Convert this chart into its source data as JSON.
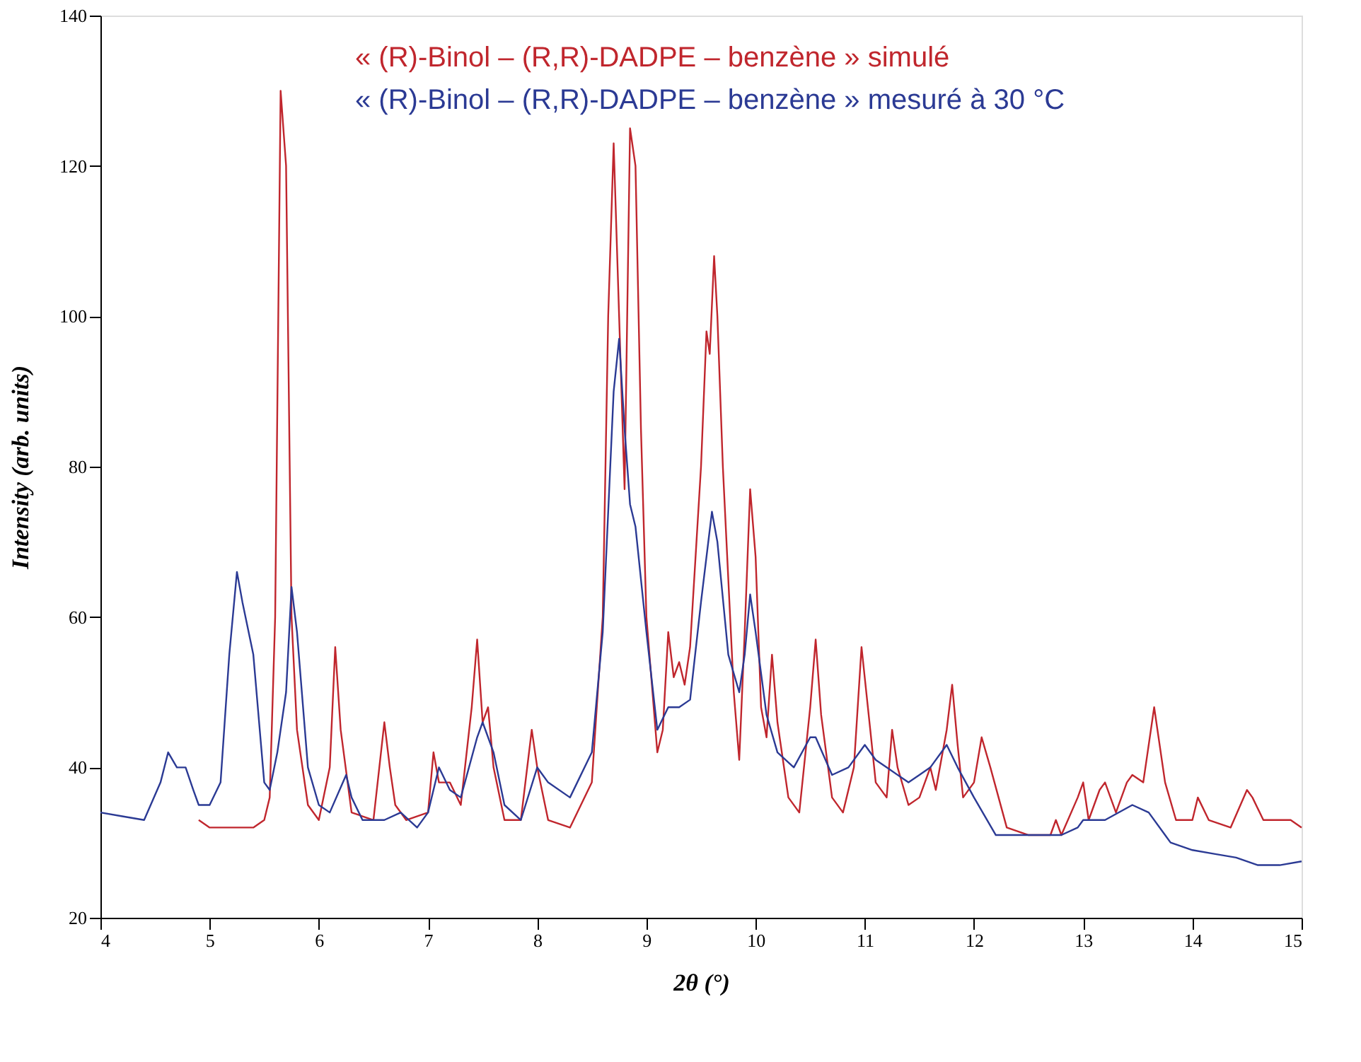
{
  "chart_data": {
    "type": "line",
    "xlabel": "2θ (°)",
    "ylabel": "Intensity (arb. units)",
    "xlim": [
      4,
      15
    ],
    "ylim": [
      20,
      140
    ],
    "xticks": [
      4,
      5,
      6,
      7,
      8,
      9,
      10,
      11,
      12,
      13,
      14,
      15
    ],
    "yticks": [
      20,
      40,
      60,
      80,
      100,
      120,
      140
    ],
    "grid": false,
    "legend": "top right",
    "marker": "none",
    "line_style": "solid",
    "series": [
      {
        "name": "« (R)-Binol – (R,R)-DADPE – benzène » simulé",
        "color": "#c0262d",
        "x": [
          4.9,
          5.0,
          5.2,
          5.4,
          5.5,
          5.55,
          5.6,
          5.65,
          5.7,
          5.75,
          5.8,
          5.9,
          6.0,
          6.1,
          6.15,
          6.2,
          6.3,
          6.5,
          6.6,
          6.65,
          6.7,
          6.8,
          7.0,
          7.05,
          7.1,
          7.2,
          7.3,
          7.4,
          7.45,
          7.5,
          7.55,
          7.6,
          7.7,
          7.85,
          7.95,
          8.0,
          8.1,
          8.3,
          8.5,
          8.6,
          8.65,
          8.7,
          8.75,
          8.8,
          8.85,
          8.9,
          8.95,
          9.0,
          9.1,
          9.15,
          9.2,
          9.25,
          9.3,
          9.35,
          9.4,
          9.5,
          9.55,
          9.58,
          9.62,
          9.65,
          9.7,
          9.8,
          9.85,
          9.9,
          9.95,
          10.0,
          10.05,
          10.1,
          10.15,
          10.2,
          10.3,
          10.4,
          10.5,
          10.55,
          10.6,
          10.7,
          10.8,
          10.9,
          10.97,
          11.05,
          11.1,
          11.2,
          11.25,
          11.3,
          11.4,
          11.5,
          11.6,
          11.65,
          11.75,
          11.8,
          11.85,
          11.9,
          12.0,
          12.07,
          12.15,
          12.3,
          12.5,
          12.7,
          12.75,
          12.8,
          12.95,
          13.0,
          13.05,
          13.15,
          13.2,
          13.3,
          13.4,
          13.45,
          13.55,
          13.65,
          13.75,
          13.85,
          14.0,
          14.05,
          14.15,
          14.35,
          14.5,
          14.55,
          14.65,
          14.8,
          14.9,
          15.0
        ],
        "values": [
          33,
          32,
          32,
          32,
          33,
          36,
          60,
          130,
          120,
          60,
          45,
          35,
          33,
          40,
          56,
          45,
          34,
          33,
          46,
          40,
          35,
          33,
          34,
          42,
          38,
          38,
          35,
          48,
          57,
          46,
          48,
          40,
          33,
          33,
          45,
          40,
          33,
          32,
          38,
          60,
          100,
          123,
          100,
          77,
          125,
          120,
          85,
          60,
          42,
          45,
          58,
          52,
          54,
          51,
          56,
          80,
          98,
          95,
          108,
          100,
          80,
          50,
          41,
          58,
          77,
          68,
          48,
          44,
          55,
          46,
          36,
          34,
          48,
          57,
          47,
          36,
          34,
          40,
          56,
          45,
          38,
          36,
          45,
          40,
          35,
          36,
          40,
          37,
          45,
          51,
          43,
          36,
          38,
          44,
          40,
          32,
          31,
          31,
          33,
          31,
          36,
          38,
          33,
          37,
          38,
          34,
          38,
          39,
          38,
          48,
          38,
          33,
          33,
          36,
          33,
          32,
          37,
          36,
          33,
          33,
          33,
          32
        ]
      },
      {
        "name": "« (R)-Binol – (R,R)-DADPE – benzène » mesuré à  30 °C",
        "color": "#2b3a94",
        "x": [
          4.0,
          4.2,
          4.4,
          4.55,
          4.62,
          4.7,
          4.78,
          4.85,
          4.9,
          5.0,
          5.1,
          5.18,
          5.25,
          5.3,
          5.4,
          5.5,
          5.55,
          5.62,
          5.7,
          5.75,
          5.8,
          5.9,
          6.0,
          6.1,
          6.25,
          6.3,
          6.4,
          6.6,
          6.75,
          6.9,
          7.0,
          7.1,
          7.2,
          7.3,
          7.45,
          7.5,
          7.6,
          7.7,
          7.85,
          8.0,
          8.1,
          8.3,
          8.5,
          8.6,
          8.7,
          8.75,
          8.8,
          8.85,
          8.9,
          9.0,
          9.1,
          9.2,
          9.3,
          9.4,
          9.5,
          9.6,
          9.65,
          9.75,
          9.85,
          9.9,
          9.95,
          10.0,
          10.1,
          10.2,
          10.35,
          10.5,
          10.55,
          10.7,
          10.85,
          11.0,
          11.1,
          11.2,
          11.4,
          11.5,
          11.6,
          11.75,
          11.85,
          12.0,
          12.2,
          12.5,
          12.8,
          12.95,
          13.0,
          13.2,
          13.45,
          13.6,
          13.75,
          13.8,
          14.0,
          14.2,
          14.4,
          14.6,
          14.8,
          15.0
        ],
        "values": [
          34,
          33.5,
          33,
          38,
          42,
          40,
          40,
          37,
          35,
          35,
          38,
          55,
          66,
          62,
          55,
          38,
          37,
          42,
          50,
          64,
          58,
          40,
          35,
          34,
          39,
          36,
          33,
          33,
          34,
          32,
          34,
          40,
          37,
          36,
          44,
          46,
          42,
          35,
          33,
          40,
          38,
          36,
          42,
          58,
          90,
          97,
          85,
          75,
          72,
          58,
          45,
          48,
          48,
          49,
          62,
          74,
          70,
          55,
          50,
          55,
          63,
          58,
          47,
          42,
          40,
          44,
          44,
          39,
          40,
          43,
          41,
          40,
          38,
          39,
          40,
          43,
          40,
          36,
          31,
          31,
          31,
          32,
          33,
          33,
          35,
          34,
          31,
          30,
          29,
          28.5,
          28,
          27,
          27,
          27.5
        ]
      }
    ]
  }
}
